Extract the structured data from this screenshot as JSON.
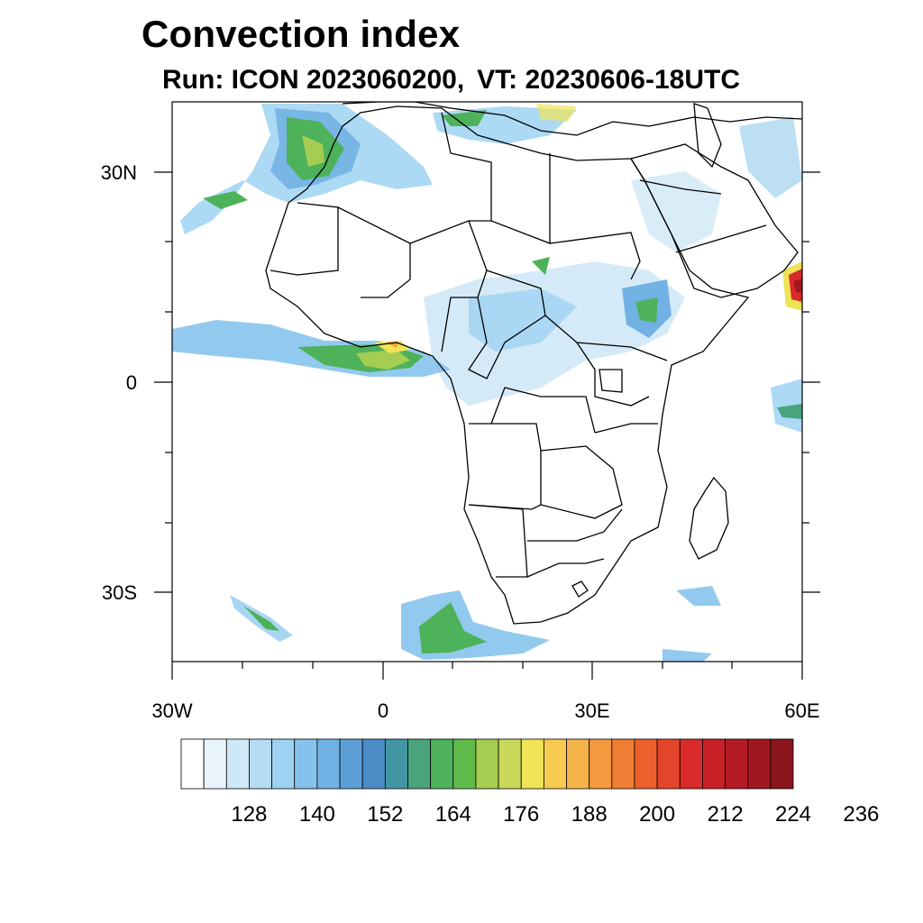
{
  "title": "Convection index",
  "subtitle": {
    "run": "Run: ICON 2023060200,",
    "vt": "VT: 20230606-18UTC"
  },
  "map": {
    "lat_labels": [
      "30N",
      "0",
      "30S"
    ],
    "lon_labels": [
      "30W",
      "0",
      "30E",
      "60E"
    ]
  },
  "colorbar": {
    "labels": [
      "128",
      "140",
      "152",
      "164",
      "176",
      "188",
      "200",
      "212",
      "224",
      "236"
    ],
    "colors": [
      "#ffffff",
      "#e9f4fb",
      "#cfe8f7",
      "#b5dcf3",
      "#9dd2f2",
      "#86c3ec",
      "#72b1e3",
      "#5c9fd6",
      "#4c8dc8",
      "#4296a3",
      "#49a37c",
      "#4db25a",
      "#60bb4a",
      "#a5cd52",
      "#c9d85a",
      "#efe456",
      "#f7cb50",
      "#f5b44a",
      "#f39a3e",
      "#ef7d33",
      "#eb602d",
      "#e3452a",
      "#d82b2a",
      "#c92028",
      "#b51b25",
      "#9f1820",
      "#8a151c"
    ]
  },
  "chart_data": {
    "type": "heatmap",
    "title": "Convection index",
    "subtitle": "Run: ICON 2023060200,  VT: 20230606-18UTC",
    "xlim": [
      -30,
      60
    ],
    "ylim": [
      -40,
      40
    ],
    "xticks": [
      -30,
      0,
      30,
      60
    ],
    "yticks": [
      30,
      0,
      -30
    ],
    "colorbar_ticks": [
      128,
      140,
      152,
      164,
      176,
      188,
      200,
      212,
      224,
      236
    ]
  }
}
